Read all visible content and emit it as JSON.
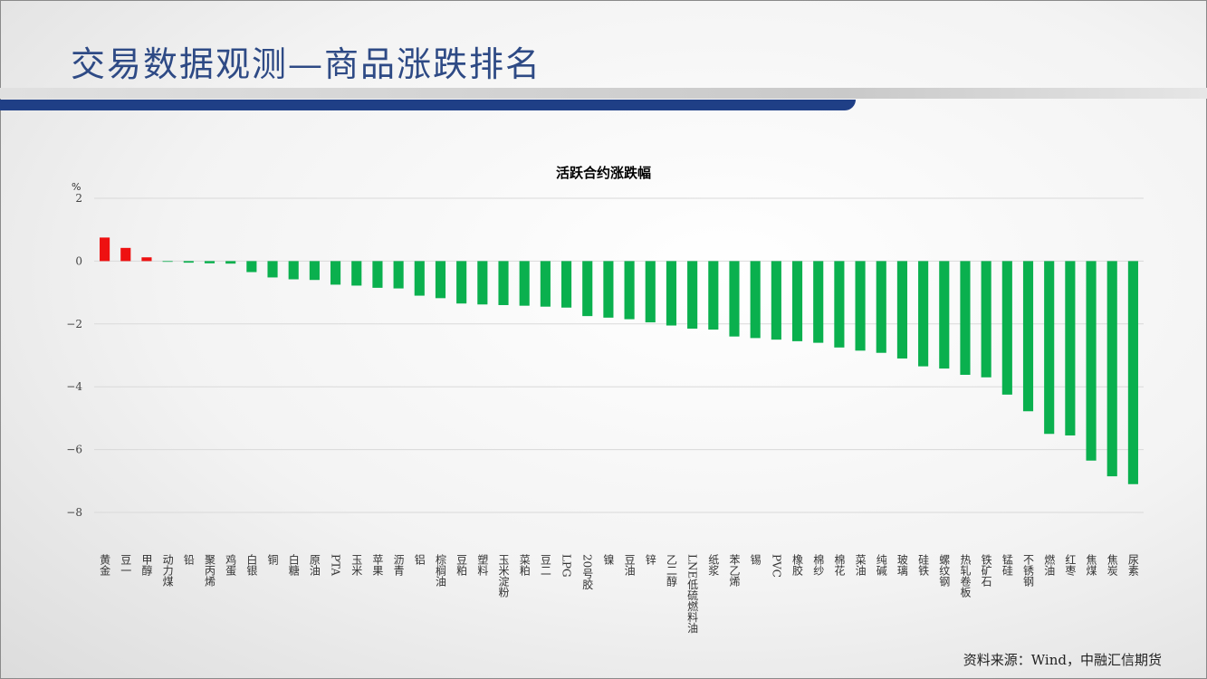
{
  "page_title": "交易数据观测—商品涨跌排名",
  "source_text": "资料来源：Wind，中融汇信期货",
  "chart_data": {
    "type": "bar",
    "title": "活跃合约涨跌幅",
    "ylabel": "%",
    "xlabel": "",
    "ylim": [
      -8,
      2
    ],
    "yticks": [
      2,
      0,
      -2,
      -4,
      -6,
      -8
    ],
    "grid": true,
    "legend": "none",
    "colors": {
      "positive": "#ee1111",
      "negative": "#0ab04e",
      "grid": "#d9d9d9"
    },
    "categories": [
      "黄金",
      "豆一",
      "甲醇",
      "动力煤",
      "铅",
      "聚丙烯",
      "鸡蛋",
      "白银",
      "铜",
      "白糖",
      "原油",
      "PTA",
      "玉米",
      "苹果",
      "沥青",
      "铝",
      "棕榈油",
      "豆粕",
      "塑料",
      "玉米淀粉",
      "菜粕",
      "豆二",
      "LPG",
      "20号胶",
      "镍",
      "豆油",
      "锌",
      "乙二醇",
      "LNE低硫燃料油",
      "纸浆",
      "苯乙烯",
      "锡",
      "PVC",
      "橡胶",
      "棉纱",
      "棉花",
      "菜油",
      "纯碱",
      "玻璃",
      "硅铁",
      "螺纹钢",
      "热轧卷板",
      "铁矿石",
      "锰硅",
      "不锈钢",
      "燃油",
      "红枣",
      "焦煤",
      "焦炭",
      "尿素"
    ],
    "values": [
      0.75,
      0.42,
      0.12,
      -0.01,
      -0.05,
      -0.07,
      -0.08,
      -0.35,
      -0.52,
      -0.58,
      -0.6,
      -0.75,
      -0.78,
      -0.85,
      -0.87,
      -1.1,
      -1.18,
      -1.35,
      -1.38,
      -1.4,
      -1.42,
      -1.45,
      -1.48,
      -1.75,
      -1.8,
      -1.85,
      -1.95,
      -2.05,
      -2.15,
      -2.18,
      -2.4,
      -2.45,
      -2.5,
      -2.55,
      -2.6,
      -2.75,
      -2.85,
      -2.92,
      -3.1,
      -3.35,
      -3.42,
      -3.62,
      -3.7,
      -4.25,
      -4.78,
      -5.5,
      -5.55,
      -6.35,
      -6.85,
      -7.1
    ]
  }
}
